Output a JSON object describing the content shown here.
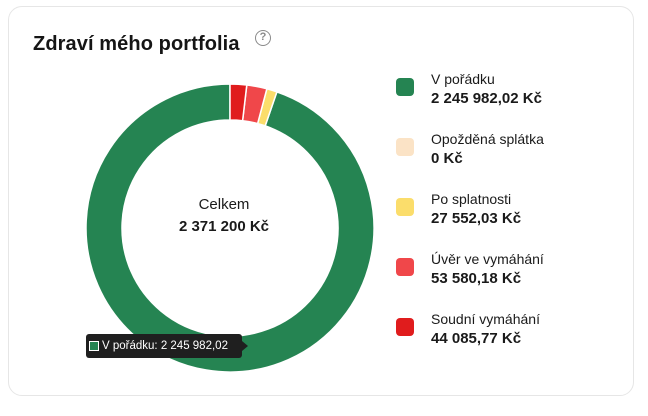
{
  "widget": {
    "title": "Zdraví mého portfolia",
    "help_icon": "question-mark-icon"
  },
  "center": {
    "title": "Celkem",
    "value": "2 371 200 Kč"
  },
  "legend": [
    {
      "label": "V pořádku",
      "value": "2 245 982,02 Kč",
      "color": "#258452"
    },
    {
      "label": "Opožděná splátka",
      "value": "0 Kč",
      "color": "#fbe3c6"
    },
    {
      "label": "Po splatnosti",
      "value": "27 552,03 Kč",
      "color": "#fbdd6b"
    },
    {
      "label": "Úvěr ve vymáhání",
      "value": "53 580,18 Kč",
      "color": "#f0474a"
    },
    {
      "label": "Soudní vymáhání",
      "value": "44 085,77 Kč",
      "color": "#e01c1d"
    }
  ],
  "tooltip": {
    "text": "V pořádku: 2 245 982,02",
    "color": "#258452"
  },
  "chart_data": {
    "type": "pie",
    "categories": [
      "V pořádku",
      "Opožděná splátka",
      "Po splatnosti",
      "Úvěr ve vymáhání",
      "Soudní vymáhání"
    ],
    "values": [
      2245982.02,
      0,
      27552.03,
      53580.18,
      44085.77
    ],
    "colors": [
      "#258452",
      "#fbe3c6",
      "#fbdd6b",
      "#f0474a",
      "#e01c1d"
    ]
  }
}
